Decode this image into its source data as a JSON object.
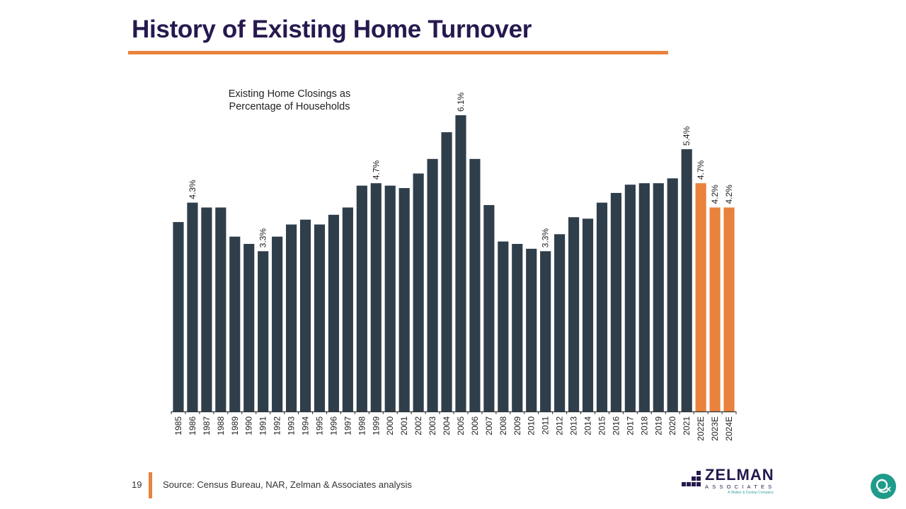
{
  "slide": {
    "title": "History of Existing Home Turnover",
    "page_number": "19",
    "source": "Source: Census Bureau, NAR, Zelman & Associates analysis"
  },
  "logo": {
    "name": "ZELMAN",
    "sub": "ASSOCIATES",
    "tagline": "A Walker & Dunlop Company"
  },
  "icons": {
    "widget": "assistant-widget-icon"
  },
  "colors": {
    "title": "#27194f",
    "accent": "#e8823c",
    "bar_actual": "#2f3e4b",
    "bar_estimate": "#e8823c",
    "widget": "#1f9b8a"
  },
  "chart_data": {
    "type": "bar",
    "title": "Existing Home Closings as Percentage of Households",
    "title_lines": [
      "Existing Home Closings as",
      "Percentage of Households"
    ],
    "xlabel": "",
    "ylabel": "",
    "ylim": [
      0,
      6.1
    ],
    "grid": false,
    "legend": "none",
    "categories": [
      "1985",
      "1986",
      "1987",
      "1988",
      "1989",
      "1990",
      "1991",
      "1992",
      "1993",
      "1994",
      "1995",
      "1996",
      "1997",
      "1998",
      "1999",
      "2000",
      "2001",
      "2002",
      "2003",
      "2004",
      "2005",
      "2006",
      "2007",
      "2008",
      "2009",
      "2010",
      "2011",
      "2012",
      "2013",
      "2014",
      "2015",
      "2016",
      "2017",
      "2018",
      "2019",
      "2020",
      "2021",
      "2022E",
      "2023E",
      "2024E"
    ],
    "series": [
      {
        "values": [
          3.9,
          4.3,
          4.2,
          4.2,
          3.6,
          3.45,
          3.3,
          3.6,
          3.85,
          3.95,
          3.85,
          4.05,
          4.2,
          4.65,
          4.7,
          4.65,
          4.6,
          4.9,
          5.2,
          5.75,
          6.1,
          5.2,
          4.25,
          3.5,
          3.45,
          3.35,
          3.3,
          3.65,
          4.0,
          3.97,
          4.3,
          4.5,
          4.67,
          4.7,
          4.7,
          4.8,
          5.4,
          4.7,
          4.2,
          4.2
        ]
      }
    ],
    "estimate_categories": [
      "2022E",
      "2023E",
      "2024E"
    ],
    "data_labels": [
      {
        "category": "1986",
        "text": "4.3%"
      },
      {
        "category": "1991",
        "text": "3.3%"
      },
      {
        "category": "1999",
        "text": "4.7%"
      },
      {
        "category": "2005",
        "text": "6.1%"
      },
      {
        "category": "2011",
        "text": "3.3%"
      },
      {
        "category": "2021",
        "text": "5.4%"
      },
      {
        "category": "2022E",
        "text": "4.7%"
      },
      {
        "category": "2023E",
        "text": "4.2%"
      },
      {
        "category": "2024E",
        "text": "4.2%"
      }
    ]
  }
}
